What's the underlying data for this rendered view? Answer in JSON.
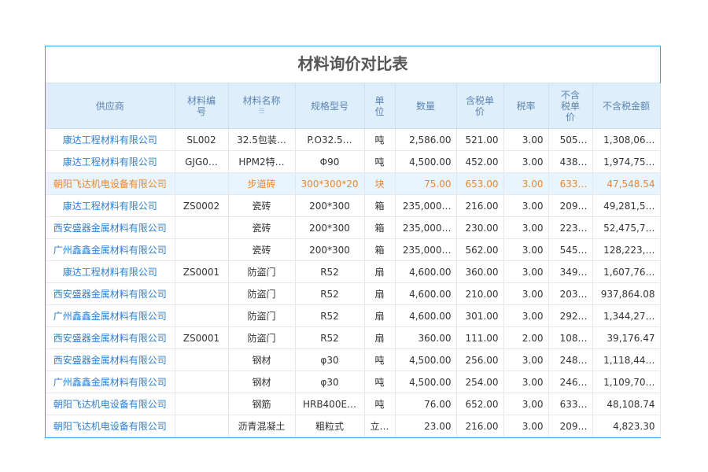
{
  "title": "材料询价对比表",
  "headers": [
    "供应商",
    "材料编号",
    "材料名称",
    "规格型号",
    "单位",
    "数量",
    "含税单价",
    "税率",
    "不含税单价",
    "不含税金额"
  ],
  "sort_icon": "list-sort-icon",
  "colors": {
    "border": "#3aa6e6",
    "header_bg": "#dfeefb",
    "supplier": "#2d7fd0",
    "highlight_text": "#e8862e",
    "highlight_bg": "#e9f5fe"
  },
  "rows": [
    [
      "康达工程材料有限公司",
      "SL002",
      "32.5包装…",
      "P.O32.5…",
      "吨",
      "2,586.00",
      "521.00",
      "3.00",
      "505…",
      "1,308,06…"
    ],
    [
      "康达工程材料有限公司",
      "GJG0…",
      "HPM2特…",
      "Φ90",
      "吨",
      "4,500.00",
      "452.00",
      "3.00",
      "438…",
      "1,974,75…"
    ],
    [
      "朝阳飞达机电设备有限公司",
      "",
      "步道砖",
      "300*300*20",
      "块",
      "75.00",
      "653.00",
      "3.00",
      "633…",
      "47,548.54"
    ],
    [
      "康达工程材料有限公司",
      "ZS0002",
      "瓷砖",
      "200*300",
      "箱",
      "235,000…",
      "216.00",
      "3.00",
      "209…",
      "49,281,5…"
    ],
    [
      "西安盛器金属材料有限公司",
      "",
      "瓷砖",
      "200*300",
      "箱",
      "235,000…",
      "230.00",
      "3.00",
      "223…",
      "52,475,7…"
    ],
    [
      "广州鑫鑫金属材料有限公司",
      "",
      "瓷砖",
      "200*300",
      "箱",
      "235,000…",
      "562.00",
      "3.00",
      "545…",
      "128,223,…"
    ],
    [
      "康达工程材料有限公司",
      "ZS0001",
      "防盗门",
      "R52",
      "扇",
      "4,600.00",
      "360.00",
      "3.00",
      "349…",
      "1,607,76…"
    ],
    [
      "西安盛器金属材料有限公司",
      "",
      "防盗门",
      "R52",
      "扇",
      "4,600.00",
      "210.00",
      "3.00",
      "203…",
      "937,864.08"
    ],
    [
      "广州鑫鑫金属材料有限公司",
      "",
      "防盗门",
      "R52",
      "扇",
      "4,600.00",
      "301.00",
      "3.00",
      "292…",
      "1,344,27…"
    ],
    [
      "西安盛器金属材料有限公司",
      "ZS0001",
      "防盗门",
      "R52",
      "扇",
      "360.00",
      "111.00",
      "2.00",
      "108…",
      "39,176.47"
    ],
    [
      "西安盛器金属材料有限公司",
      "",
      "钢材",
      "φ30",
      "吨",
      "4,500.00",
      "256.00",
      "3.00",
      "248…",
      "1,118,44…"
    ],
    [
      "广州鑫鑫金属材料有限公司",
      "",
      "钢材",
      "φ30",
      "吨",
      "4,500.00",
      "254.00",
      "3.00",
      "246…",
      "1,109,70…"
    ],
    [
      "朝阳飞达机电设备有限公司",
      "",
      "钢筋",
      "HRB400E…",
      "吨",
      "76.00",
      "652.00",
      "3.00",
      "633…",
      "48,108.74"
    ],
    [
      "朝阳飞达机电设备有限公司",
      "",
      "沥青混凝土",
      "粗粒式",
      "立…",
      "23.00",
      "216.00",
      "3.00",
      "209…",
      "4,823.30"
    ]
  ],
  "highlight_row": 2
}
